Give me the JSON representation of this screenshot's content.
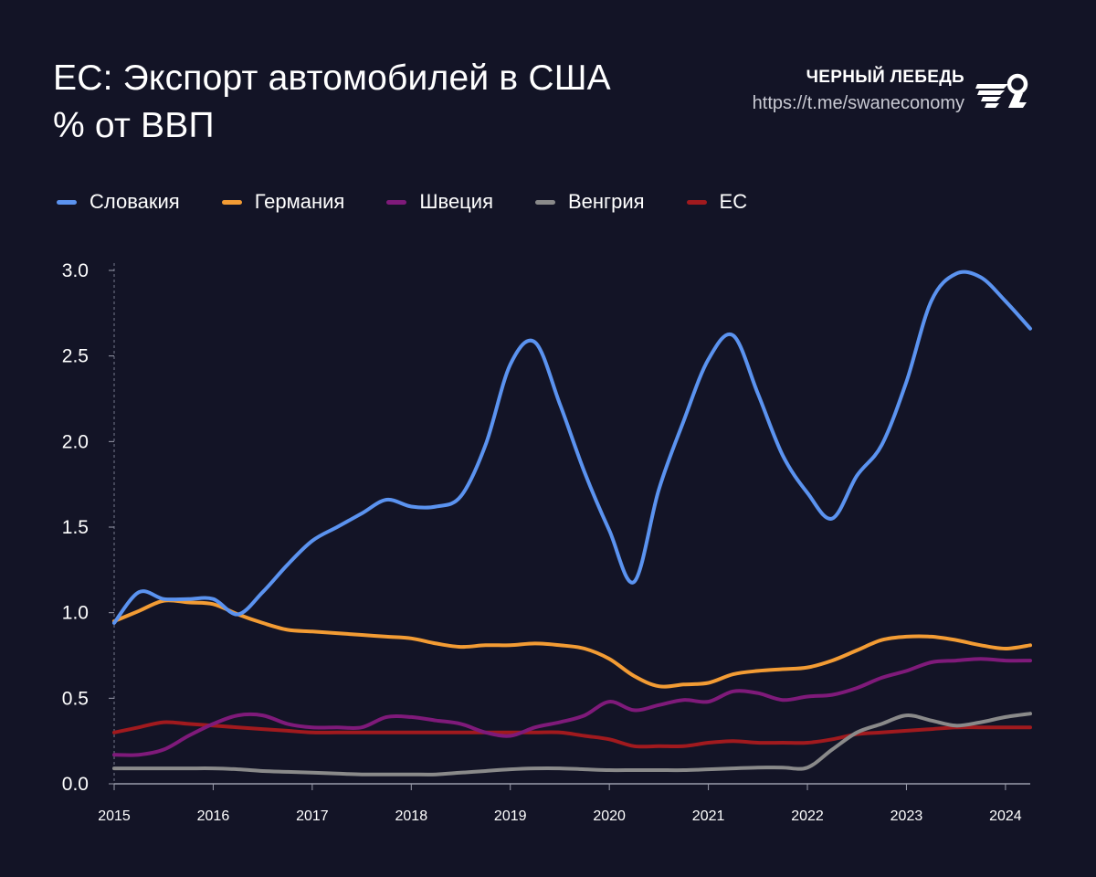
{
  "header": {
    "title_line1": "ЕС: Экспорт автомобилей в США",
    "title_line2": "% от ВВП",
    "brand_name": "ЧЕРНЫЙ ЛЕБЕДЬ",
    "brand_url": "https://t.me/swaneconomy"
  },
  "colors": {
    "background": "#131426",
    "Словакия": "#5b93f0",
    "Германия": "#f39c34",
    "Швеция": "#7f1a7a",
    "Венгрия": "#8a8a8a",
    "ЕС": "#a11a1e"
  },
  "chart_data": {
    "type": "line",
    "title": "ЕС: Экспорт автомобилей в США",
    "subtitle": "% от ВВП",
    "xlabel": "",
    "ylabel": "",
    "xlim": [
      2015,
      2024.25
    ],
    "ylim": [
      0,
      3.0
    ],
    "yticks": [
      "0.0",
      "0.5",
      "1.0",
      "1.5",
      "2.0",
      "2.5",
      "3.0"
    ],
    "xticks": [
      "2015",
      "2016",
      "2017",
      "2018",
      "2019",
      "2020",
      "2021",
      "2022",
      "2023",
      "2024"
    ],
    "grid": false,
    "legend_position": "top-left",
    "series": [
      {
        "name": "Словакия",
        "color": "#5b93f0",
        "x": [
          2015.0,
          2015.25,
          2015.5,
          2015.75,
          2016.0,
          2016.25,
          2016.5,
          2016.75,
          2017.0,
          2017.25,
          2017.5,
          2017.75,
          2018.0,
          2018.25,
          2018.5,
          2018.75,
          2019.0,
          2019.25,
          2019.5,
          2019.75,
          2020.0,
          2020.25,
          2020.5,
          2020.75,
          2021.0,
          2021.25,
          2021.5,
          2021.75,
          2022.0,
          2022.25,
          2022.5,
          2022.75,
          2023.0,
          2023.25,
          2023.5,
          2023.75,
          2024.0,
          2024.25
        ],
        "values": [
          0.94,
          1.12,
          1.08,
          1.08,
          1.08,
          0.99,
          1.12,
          1.28,
          1.42,
          1.5,
          1.58,
          1.66,
          1.62,
          1.62,
          1.68,
          1.98,
          2.45,
          2.58,
          2.22,
          1.82,
          1.48,
          1.18,
          1.72,
          2.12,
          2.48,
          2.62,
          2.28,
          1.92,
          1.7,
          1.55,
          1.8,
          1.98,
          2.35,
          2.82,
          2.98,
          2.96,
          2.82,
          2.66
        ]
      },
      {
        "name": "Германия",
        "color": "#f39c34",
        "x": [
          2015.0,
          2015.25,
          2015.5,
          2015.75,
          2016.0,
          2016.25,
          2016.5,
          2016.75,
          2017.0,
          2017.25,
          2017.5,
          2017.75,
          2018.0,
          2018.25,
          2018.5,
          2018.75,
          2019.0,
          2019.25,
          2019.5,
          2019.75,
          2020.0,
          2020.25,
          2020.5,
          2020.75,
          2021.0,
          2021.25,
          2021.5,
          2021.75,
          2022.0,
          2022.25,
          2022.5,
          2022.75,
          2023.0,
          2023.25,
          2023.5,
          2023.75,
          2024.0,
          2024.25
        ],
        "values": [
          0.95,
          1.01,
          1.07,
          1.06,
          1.05,
          0.99,
          0.94,
          0.9,
          0.89,
          0.88,
          0.87,
          0.86,
          0.85,
          0.82,
          0.8,
          0.81,
          0.81,
          0.82,
          0.81,
          0.79,
          0.73,
          0.63,
          0.57,
          0.58,
          0.59,
          0.64,
          0.66,
          0.67,
          0.68,
          0.72,
          0.78,
          0.84,
          0.86,
          0.86,
          0.84,
          0.81,
          0.79,
          0.81
        ]
      },
      {
        "name": "Швеция",
        "color": "#7f1a7a",
        "x": [
          2015.0,
          2015.25,
          2015.5,
          2015.75,
          2016.0,
          2016.25,
          2016.5,
          2016.75,
          2017.0,
          2017.25,
          2017.5,
          2017.75,
          2018.0,
          2018.25,
          2018.5,
          2018.75,
          2019.0,
          2019.25,
          2019.5,
          2019.75,
          2020.0,
          2020.25,
          2020.5,
          2020.75,
          2021.0,
          2021.25,
          2021.5,
          2021.75,
          2022.0,
          2022.25,
          2022.5,
          2022.75,
          2023.0,
          2023.25,
          2023.5,
          2023.75,
          2024.0,
          2024.25
        ],
        "values": [
          0.17,
          0.17,
          0.2,
          0.28,
          0.35,
          0.4,
          0.4,
          0.35,
          0.33,
          0.33,
          0.33,
          0.39,
          0.39,
          0.37,
          0.35,
          0.3,
          0.28,
          0.33,
          0.36,
          0.4,
          0.48,
          0.43,
          0.46,
          0.49,
          0.48,
          0.54,
          0.53,
          0.49,
          0.51,
          0.52,
          0.56,
          0.62,
          0.66,
          0.71,
          0.72,
          0.73,
          0.72,
          0.72
        ]
      },
      {
        "name": "Венгрия",
        "color": "#8a8a8a",
        "x": [
          2015.0,
          2015.25,
          2015.5,
          2015.75,
          2016.0,
          2016.25,
          2016.5,
          2016.75,
          2017.0,
          2017.25,
          2017.5,
          2017.75,
          2018.0,
          2018.25,
          2018.5,
          2018.75,
          2019.0,
          2019.25,
          2019.5,
          2019.75,
          2020.0,
          2020.25,
          2020.5,
          2020.75,
          2021.0,
          2021.25,
          2021.5,
          2021.75,
          2022.0,
          2022.25,
          2022.5,
          2022.75,
          2023.0,
          2023.25,
          2023.5,
          2023.75,
          2024.0,
          2024.25
        ],
        "values": [
          0.09,
          0.09,
          0.09,
          0.09,
          0.09,
          0.085,
          0.075,
          0.07,
          0.065,
          0.06,
          0.055,
          0.055,
          0.055,
          0.055,
          0.065,
          0.075,
          0.085,
          0.09,
          0.09,
          0.085,
          0.08,
          0.08,
          0.08,
          0.08,
          0.085,
          0.09,
          0.095,
          0.095,
          0.095,
          0.2,
          0.3,
          0.35,
          0.4,
          0.37,
          0.34,
          0.36,
          0.39,
          0.41
        ]
      },
      {
        "name": "ЕС",
        "color": "#a11a1e",
        "x": [
          2015.0,
          2015.25,
          2015.5,
          2015.75,
          2016.0,
          2016.25,
          2016.5,
          2016.75,
          2017.0,
          2017.25,
          2017.5,
          2017.75,
          2018.0,
          2018.25,
          2018.5,
          2018.75,
          2019.0,
          2019.25,
          2019.5,
          2019.75,
          2020.0,
          2020.25,
          2020.5,
          2020.75,
          2021.0,
          2021.25,
          2021.5,
          2021.75,
          2022.0,
          2022.25,
          2022.5,
          2022.75,
          2023.0,
          2023.25,
          2023.5,
          2023.75,
          2024.0,
          2024.25
        ],
        "values": [
          0.3,
          0.33,
          0.36,
          0.35,
          0.34,
          0.33,
          0.32,
          0.31,
          0.3,
          0.3,
          0.3,
          0.3,
          0.3,
          0.3,
          0.3,
          0.3,
          0.3,
          0.3,
          0.3,
          0.28,
          0.26,
          0.22,
          0.22,
          0.22,
          0.24,
          0.25,
          0.24,
          0.24,
          0.24,
          0.26,
          0.29,
          0.3,
          0.31,
          0.32,
          0.33,
          0.33,
          0.33,
          0.33
        ]
      }
    ]
  }
}
